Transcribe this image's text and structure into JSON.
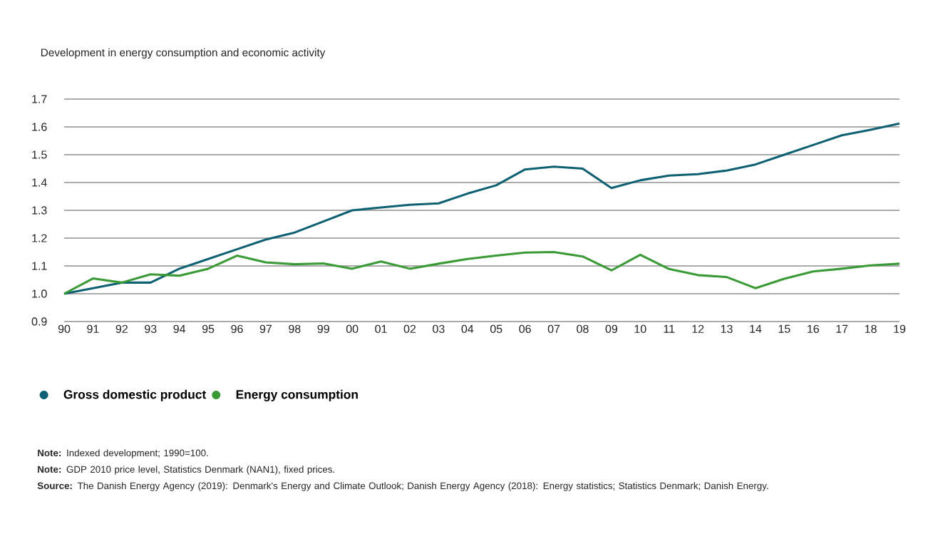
{
  "chart_data": {
    "type": "line",
    "title": "Development in energy consumption and economic activity",
    "categories": [
      "90",
      "91",
      "92",
      "93",
      "94",
      "95",
      "96",
      "97",
      "98",
      "99",
      "00",
      "01",
      "02",
      "03",
      "04",
      "05",
      "06",
      "07",
      "08",
      "09",
      "10",
      "11",
      "12",
      "13",
      "14",
      "15",
      "16",
      "17",
      "18",
      "19"
    ],
    "series": [
      {
        "name": "Gross domestic product",
        "color": "#0e6172",
        "values": [
          1.0,
          1.02,
          1.04,
          1.04,
          1.09,
          1.125,
          1.16,
          1.195,
          1.22,
          1.26,
          1.3,
          1.31,
          1.32,
          1.325,
          1.36,
          1.39,
          1.447,
          1.457,
          1.45,
          1.38,
          1.408,
          1.425,
          1.43,
          1.443,
          1.465,
          1.5,
          1.535,
          1.57,
          1.59,
          1.612
        ]
      },
      {
        "name": "Energy consumption",
        "color": "#3a9a35",
        "values": [
          1.0,
          1.055,
          1.04,
          1.07,
          1.065,
          1.09,
          1.137,
          1.113,
          1.106,
          1.109,
          1.09,
          1.116,
          1.09,
          1.108,
          1.125,
          1.137,
          1.148,
          1.15,
          1.134,
          1.084,
          1.14,
          1.089,
          1.067,
          1.06,
          1.02,
          1.054,
          1.08,
          1.09,
          1.102,
          1.108
        ]
      }
    ],
    "ylim": [
      0.9,
      1.7
    ],
    "yticks": [
      0.9,
      {
        "value": 1,
        "label": "1.0"
      },
      1.1,
      1.2,
      1.3,
      1.4,
      1.5,
      1.6,
      1.7
    ],
    "grid": "y",
    "legend": "bottom left",
    "marker": "none",
    "line_style": "solid",
    "annotations": [
      "**Note:** Indexed development; 1990=100.",
      "**Note:** GDP 2010 price level, Statistics Denmark (NAN1), fixed prices.",
      "**Source:** The Danish Energy Agency (2019): Denmark's Energy and Climate Outlook; Danish Energy Agency (2018): Energy statistics; Statistics Denmark; Danish Energy."
    ]
  }
}
